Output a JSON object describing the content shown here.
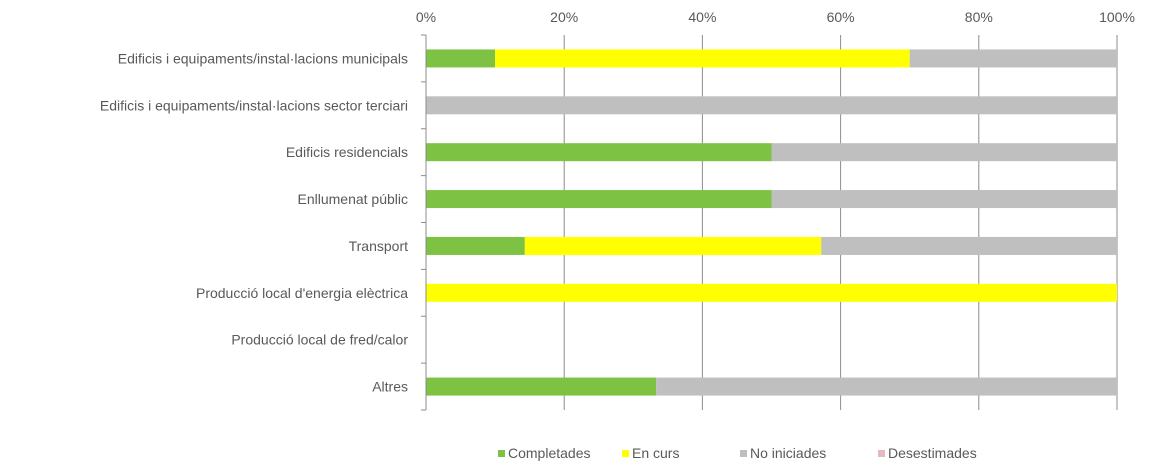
{
  "chart_data": {
    "type": "bar",
    "orientation": "horizontal",
    "stacked": "percent",
    "title": "",
    "xlabel": "",
    "ylabel": "",
    "xlim": [
      0,
      100
    ],
    "x_ticks": [
      "0%",
      "20%",
      "40%",
      "60%",
      "80%",
      "100%"
    ],
    "x_axis_position": "top",
    "grid": true,
    "legend_position": "bottom",
    "categories": [
      "Edificis i equipaments/instal·lacions municipals",
      "Edificis i equipaments/instal·lacions sector terciari",
      "Edificis residencials",
      "Enllumenat públic",
      "Transport",
      "Producció local d'energia elèctrica",
      "Producció local de fred/calor",
      "Altres"
    ],
    "series": [
      {
        "name": "Completades",
        "color": "#7dc242",
        "values": [
          10,
          0,
          50,
          50,
          14.3,
          0,
          0,
          33.3
        ]
      },
      {
        "name": "En curs",
        "color": "#ffff00",
        "values": [
          60,
          0,
          0,
          0,
          42.9,
          100,
          0,
          0
        ]
      },
      {
        "name": "No iniciades",
        "color": "#bfbfbf",
        "values": [
          30,
          100,
          50,
          50,
          42.8,
          0,
          0,
          66.7
        ]
      },
      {
        "name": "Desestimades",
        "color": "#e6b9c0",
        "values": [
          0,
          0,
          0,
          0,
          0,
          0,
          0,
          0
        ]
      }
    ]
  }
}
